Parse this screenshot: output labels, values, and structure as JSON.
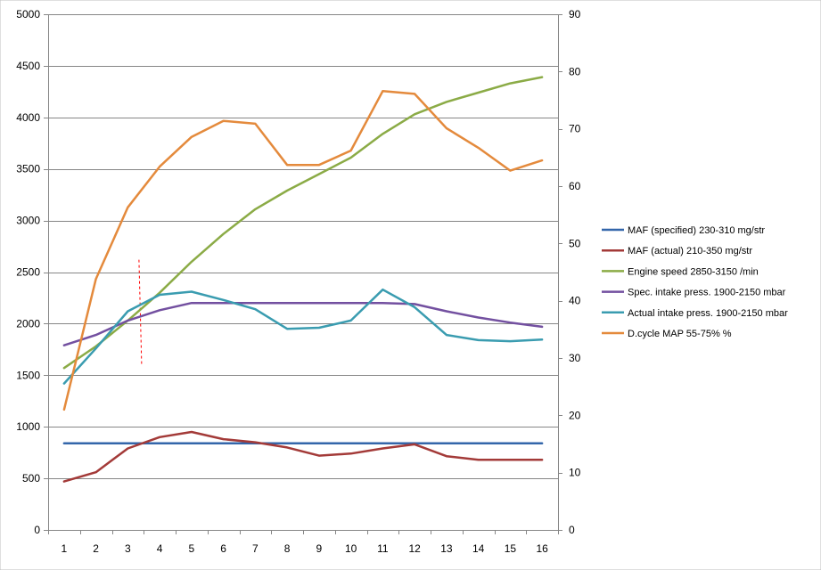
{
  "chart_data": {
    "type": "line",
    "title": "",
    "xlabel": "",
    "ylabel": "",
    "y2label": "",
    "x": [
      1,
      2,
      3,
      4,
      5,
      6,
      7,
      8,
      9,
      10,
      11,
      12,
      13,
      14,
      15,
      16
    ],
    "x_tick_labels": [
      "1",
      "2",
      "3",
      "4",
      "5",
      "6",
      "7",
      "8",
      "9",
      "10",
      "11",
      "12",
      "13",
      "14",
      "15",
      "16"
    ],
    "ylim": [
      0,
      5000
    ],
    "y_ticks": [
      0,
      500,
      1000,
      1500,
      2000,
      2500,
      3000,
      3500,
      4000,
      4500,
      5000
    ],
    "y_tick_labels": [
      "0",
      "500",
      "1000",
      "1500",
      "2000",
      "2500",
      "3000",
      "3500",
      "4000",
      "4500",
      "5000"
    ],
    "y2lim": [
      0,
      90
    ],
    "y2_ticks": [
      0,
      10,
      20,
      30,
      40,
      50,
      60,
      70,
      80,
      90
    ],
    "y2_tick_labels": [
      "0",
      "10",
      "20",
      "30",
      "40",
      "50",
      "60",
      "70",
      "80",
      "90"
    ],
    "grid": "horizontal",
    "legend_position": "right",
    "series": [
      {
        "name": "MAF (specified) 230-310  mg/str",
        "color": "#3366aa",
        "axis": "left",
        "values": [
          840,
          840,
          840,
          840,
          840,
          840,
          840,
          840,
          840,
          840,
          840,
          840,
          840,
          840,
          840,
          840
        ]
      },
      {
        "name": "MAF (actual) 210-350  mg/str",
        "color": "#a33a38",
        "axis": "left",
        "values": [
          470,
          560,
          790,
          900,
          950,
          880,
          850,
          800,
          720,
          740,
          790,
          830,
          715,
          680,
          680,
          680
        ]
      },
      {
        "name": "Engine speed 2850-3150  /min",
        "color": "#8bab46",
        "axis": "left",
        "values": [
          1570,
          1780,
          2030,
          2300,
          2600,
          2870,
          3110,
          3290,
          3450,
          3610,
          3840,
          4030,
          4150,
          4240,
          4330,
          4390
        ]
      },
      {
        "name": "Spec. intake press. 1900-2150  mbar",
        "color": "#7350a0",
        "axis": "left",
        "values": [
          1790,
          1890,
          2030,
          2130,
          2200,
          2200,
          2200,
          2200,
          2200,
          2200,
          2200,
          2190,
          2120,
          2060,
          2010,
          1970
        ]
      },
      {
        "name": "Actual intake press. 1900-2150  mbar",
        "color": "#3a9cb0",
        "axis": "left",
        "values": [
          1420,
          1760,
          2120,
          2280,
          2310,
          2230,
          2140,
          1950,
          1960,
          2030,
          2330,
          2160,
          1890,
          1840,
          1830,
          1845
        ]
      },
      {
        "name": "D.cycle MAP 55-75% %",
        "color": "#e48a3c",
        "axis": "right",
        "values": [
          21,
          43.8,
          56.3,
          63.4,
          68.6,
          71.4,
          70.9,
          63.7,
          63.7,
          66.2,
          76.6,
          76.1,
          70.1,
          66.7,
          62.7,
          64.5
        ]
      }
    ],
    "annotations": [
      {
        "type": "vertical-dashed-line",
        "color": "#ff0000",
        "x": 3.35,
        "y_from": 1600,
        "y_to": 2620
      }
    ]
  }
}
